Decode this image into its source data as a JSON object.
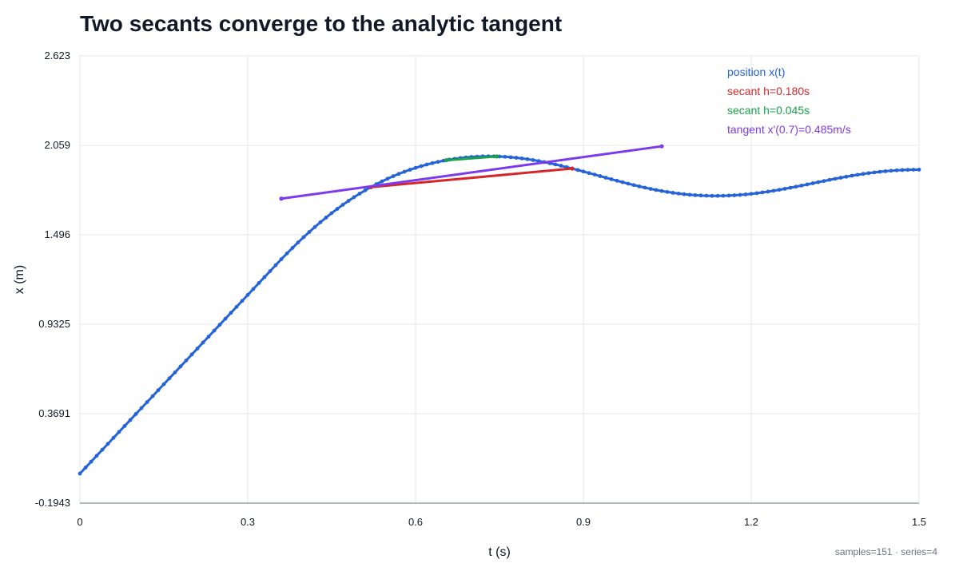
{
  "footer": {
    "samples_label": "samples=151",
    "separator": "·",
    "series_label": "series=4"
  },
  "chart_data": {
    "type": "line",
    "title": "Two secants converge to the analytic tangent",
    "xlabel": "t (s)",
    "ylabel": "x (m)",
    "xlim": [
      0,
      1.5
    ],
    "ylim": [
      -0.1943,
      2.623
    ],
    "xticks": [
      0,
      0.3,
      0.6,
      0.9,
      1.2,
      1.5
    ],
    "xtick_labels": [
      "0",
      "0.3",
      "0.6",
      "0.9",
      "1.2",
      "1.5"
    ],
    "yticks": [
      -0.1943,
      0.3691,
      0.9325,
      1.496,
      2.059,
      2.623
    ],
    "ytick_labels": [
      "-0.1943",
      "0.3691",
      "0.9325",
      "1.496",
      "2.059",
      "2.623"
    ],
    "grid": true,
    "legend_position": "top-right",
    "series": [
      {
        "name": "position x(t)",
        "color": "#2563d9",
        "x": [
          0,
          0.01,
          0.02,
          0.03,
          0.04,
          0.05,
          0.06,
          0.07,
          0.08,
          0.09,
          0.1,
          0.11,
          0.12,
          0.13,
          0.14,
          0.15,
          0.16,
          0.17,
          0.18,
          0.19,
          0.2,
          0.21,
          0.22,
          0.23,
          0.24,
          0.25,
          0.26,
          0.27,
          0.28,
          0.29,
          0.3,
          0.31,
          0.32,
          0.33,
          0.34,
          0.35,
          0.36,
          0.37,
          0.38,
          0.39,
          0.4,
          0.41,
          0.42,
          0.43,
          0.44,
          0.45,
          0.46,
          0.47,
          0.48,
          0.49,
          0.5,
          0.51,
          0.52,
          0.53,
          0.54,
          0.55,
          0.56,
          0.57,
          0.58,
          0.59,
          0.6,
          0.61,
          0.62,
          0.63,
          0.64,
          0.65,
          0.66,
          0.67,
          0.68,
          0.69,
          0.7,
          0.71,
          0.72,
          0.73,
          0.74,
          0.75,
          0.76,
          0.77,
          0.78,
          0.79,
          0.8,
          0.81,
          0.82,
          0.83,
          0.84,
          0.85,
          0.86,
          0.87,
          0.88,
          0.89,
          0.9,
          0.91,
          0.92,
          0.93,
          0.94,
          0.95,
          0.96,
          0.97,
          0.98,
          0.99,
          1,
          1.01,
          1.02,
          1.03,
          1.04,
          1.05,
          1.06,
          1.07,
          1.08,
          1.09,
          1.1,
          1.11,
          1.12,
          1.13,
          1.14,
          1.15,
          1.16,
          1.17,
          1.18,
          1.19,
          1.2,
          1.21,
          1.22,
          1.23,
          1.24,
          1.25,
          1.26,
          1.27,
          1.28,
          1.29,
          1.3,
          1.31,
          1.32,
          1.33,
          1.34,
          1.35,
          1.36,
          1.37,
          1.38,
          1.39,
          1.4,
          1.41,
          1.42,
          1.43,
          1.44,
          1.45,
          1.46,
          1.47,
          1.48,
          1.49,
          1.5
        ],
        "y": [
          -0.0083,
          0.0292,
          0.0667,
          0.1042,
          0.1417,
          0.1793,
          0.2168,
          0.2543,
          0.2918,
          0.3293,
          0.3669,
          0.4044,
          0.4419,
          0.4794,
          0.5169,
          0.5545,
          0.592,
          0.6295,
          0.667,
          0.7045,
          0.7421,
          0.7796,
          0.8171,
          0.8546,
          0.8921,
          0.9297,
          0.9672,
          1.0047,
          1.0422,
          1.0797,
          1.1173,
          1.1548,
          1.1923,
          1.2298,
          1.2673,
          1.3049,
          1.3424,
          1.3784,
          1.4136,
          1.4479,
          1.4813,
          1.5137,
          1.5451,
          1.5754,
          1.6046,
          1.6326,
          1.6594,
          1.6851,
          1.7096,
          1.733,
          1.7552,
          1.7762,
          1.7962,
          1.815,
          1.8327,
          1.8494,
          1.865,
          1.8796,
          1.8932,
          1.9059,
          1.9176,
          1.9285,
          1.9384,
          1.9474,
          1.9555,
          1.9628,
          1.9692,
          1.9747,
          1.9795,
          1.9833,
          1.9864,
          1.9886,
          1.99,
          1.9906,
          1.9903,
          1.9892,
          1.9874,
          1.9847,
          1.9813,
          1.9772,
          1.9724,
          1.9669,
          1.9608,
          1.9541,
          1.9469,
          1.9391,
          1.9309,
          1.9223,
          1.9134,
          1.9042,
          1.8947,
          1.8851,
          1.8754,
          1.8656,
          1.8558,
          1.8461,
          1.8366,
          1.8273,
          1.8182,
          1.8094,
          1.801,
          1.793,
          1.7855,
          1.7784,
          1.7719,
          1.766,
          1.7606,
          1.7559,
          1.7518,
          1.7484,
          1.7456,
          1.7435,
          1.7421,
          1.7413,
          1.7412,
          1.7418,
          1.743,
          1.7448,
          1.7473,
          1.7504,
          1.754,
          1.7582,
          1.7629,
          1.768,
          1.7736,
          1.7795,
          1.7858,
          1.7924,
          1.7992,
          1.8062,
          1.8133,
          1.8205,
          1.8277,
          1.8349,
          1.842,
          1.849,
          1.8557,
          1.8621,
          1.8683,
          1.8741,
          1.8795,
          1.8845,
          1.889,
          1.893,
          1.8965,
          1.8995,
          1.902,
          1.904,
          1.9053,
          1.9062,
          1.9064
        ]
      },
      {
        "name": "secant h=0.180s",
        "color": "#d62728",
        "x": [
          0.52,
          0.88
        ],
        "y": [
          1.7962,
          1.9134
        ]
      },
      {
        "name": "secant h=0.045s",
        "color": "#16a34a",
        "x": [
          0.655,
          0.745
        ],
        "y": [
          1.966,
          1.9898
        ]
      },
      {
        "name": "tangent x'(0.7)=0.485m/s",
        "color": "#7c3aed",
        "x": [
          0.36,
          1.04
        ],
        "y": [
          1.7238,
          2.0536
        ]
      }
    ]
  }
}
